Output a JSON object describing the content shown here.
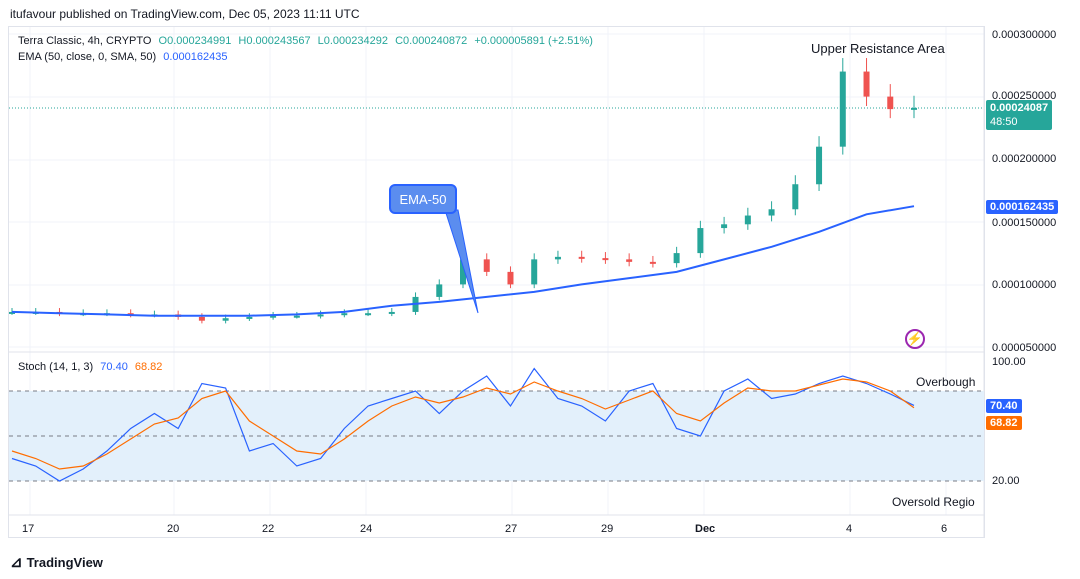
{
  "header": {
    "published": "itufavour published on TradingView.com, Dec 05, 2023 11:11 UTC"
  },
  "legend": {
    "symbol": "Terra Classic, 4h, CRYPTO",
    "open": "O0.000234991",
    "high": "H0.000243567",
    "low": "L0.000234292",
    "close": "C0.000240872",
    "change": "+0.000005891 (+2.51%)",
    "ema_label": "EMA (50, close, 0, SMA, 50)",
    "ema_value": "0.000162435",
    "stoch_label": "Stoch (14, 1, 3)",
    "stoch_k": "70.40",
    "stoch_d": "68.82"
  },
  "annotations": {
    "upper_resistance": "Upper Resistance Area",
    "ema_callout": "EMA-50",
    "overbought": "Overbough",
    "oversold": "Oversold Regio"
  },
  "price_axis": {
    "ticks": [
      "0.000300000",
      "0.000250000",
      "0.000200000",
      "0.000150000",
      "0.000100000",
      "0.000050000"
    ],
    "current_price": "0.00024087",
    "countdown": "48:50",
    "ema_price": "0.000162435"
  },
  "stoch_axis": {
    "ticks": [
      "100.00",
      "20.00"
    ],
    "k_value": "70.40",
    "d_value": "68.82"
  },
  "time_axis": {
    "ticks": [
      "17",
      "20",
      "22",
      "24",
      "27",
      "29",
      "Dec",
      "4",
      "6"
    ]
  },
  "footer": {
    "brand": "TradingView"
  },
  "colors": {
    "up": "#26a69a",
    "down": "#ef5350",
    "ema": "#2962ff",
    "stoch_k": "#2962ff",
    "stoch_d": "#ff6d00",
    "band": "#e3f0fb"
  },
  "chart_data": [
    {
      "type": "candlestick",
      "title": "Terra Classic, 4h, CRYPTO",
      "ylim": [
        5e-05,
        0.0003
      ],
      "x_labels": [
        "17",
        "20",
        "22",
        "24",
        "27",
        "29",
        "Dec",
        "4",
        "6"
      ],
      "close_approx": [
        7.8e-05,
        7.8e-05,
        7.7e-05,
        7.7e-05,
        7.7e-05,
        7.6e-05,
        7.6e-05,
        7.4e-05,
        7.1e-05,
        7.3e-05,
        7.4e-05,
        7.5e-05,
        7.5e-05,
        7.6e-05,
        7.7e-05,
        7.7e-05,
        7.8e-05,
        9e-05,
        0.0001,
        0.00012,
        0.00011,
        0.0001,
        0.00012,
        0.000122,
        0.000121,
        0.00012,
        0.000118,
        0.000117,
        0.000125,
        0.000145,
        0.000148,
        0.000155,
        0.00016,
        0.00018,
        0.00021,
        0.00027,
        0.00025,
        0.00024,
        0.000241
      ],
      "ema50_approx": [
        7.8e-05,
        7.7e-05,
        7.6e-05,
        7.5e-05,
        7.5e-05,
        7.5e-05,
        7.6e-05,
        7.8e-05,
        8.3e-05,
        8.6e-05,
        9e-05,
        9.4e-05,
        0.0001,
        0.000105,
        0.00011,
        0.00012,
        0.00013,
        0.000142,
        0.000156,
        0.000162435
      ],
      "current_price": 0.000240872,
      "ema_value": 0.000162435
    },
    {
      "type": "line",
      "title": "Stoch (14, 1, 3)",
      "ylim": [
        0,
        100
      ],
      "levels": [
        80,
        50,
        20
      ],
      "series": [
        {
          "name": "%K",
          "values": [
            35,
            30,
            20,
            28,
            40,
            55,
            65,
            55,
            85,
            82,
            40,
            45,
            30,
            35,
            55,
            70,
            75,
            80,
            65,
            80,
            90,
            70,
            95,
            75,
            70,
            60,
            80,
            85,
            55,
            50,
            80,
            88,
            75,
            78,
            85,
            90,
            85,
            78,
            70.4
          ]
        },
        {
          "name": "%D",
          "values": [
            40,
            35,
            28,
            30,
            38,
            48,
            58,
            62,
            75,
            80,
            60,
            50,
            40,
            38,
            48,
            60,
            70,
            76,
            72,
            76,
            82,
            78,
            86,
            80,
            75,
            68,
            74,
            80,
            65,
            60,
            72,
            82,
            80,
            80,
            84,
            88,
            86,
            80,
            68.82
          ]
        }
      ]
    }
  ]
}
